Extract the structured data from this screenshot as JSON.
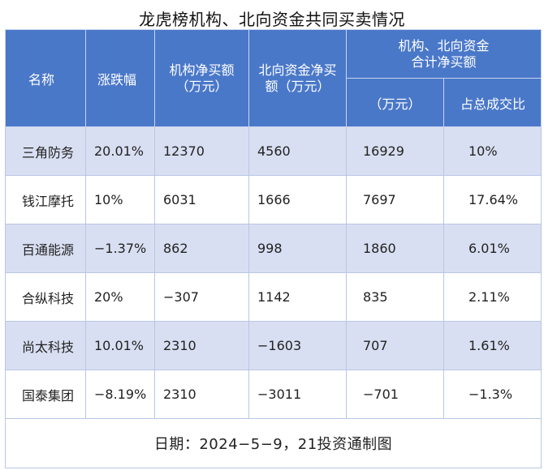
{
  "title": "龙虎榜机构、北向资金共同买卖情况",
  "headers": {
    "name": "名称",
    "change": "涨跌幅",
    "inst_line1": "机构净买额",
    "inst_line2": "（万元）",
    "north_line1": "北向资金净买",
    "north_line2": "额（万元）",
    "combined_line1": "机构、北向资金",
    "combined_line2": "合计净买额",
    "combined_unit": "（万元）",
    "combined_pct": "占总成交比"
  },
  "rows": [
    {
      "name": "三角防务",
      "change": "20.01%",
      "inst": "12370",
      "north": "4560",
      "total": "16929",
      "pct": "10%"
    },
    {
      "name": "钱江摩托",
      "change": "10%",
      "inst": "6031",
      "north": "1666",
      "total": "7697",
      "pct": "17.64%"
    },
    {
      "name": "百通能源",
      "change": "−1.37%",
      "inst": "862",
      "north": "998",
      "total": "1860",
      "pct": "6.01%"
    },
    {
      "name": "合纵科技",
      "change": "20%",
      "inst": "−307",
      "north": "1142",
      "total": "835",
      "pct": "2.11%"
    },
    {
      "name": "尚太科技",
      "change": "10.01%",
      "inst": "2310",
      "north": "−1603",
      "total": "707",
      "pct": "1.61%"
    },
    {
      "name": "国泰集团",
      "change": "−8.19%",
      "inst": "2310",
      "north": "−3011",
      "total": "−701",
      "pct": "−1.3%"
    }
  ],
  "footer": "日期：2024−5−9，21投资通制图"
}
